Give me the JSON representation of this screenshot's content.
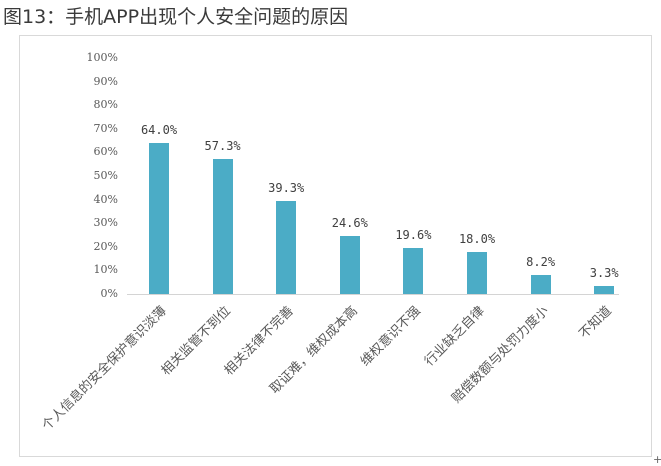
{
  "header": {
    "title": "图13：手机APP出现个人安全问题的原因"
  },
  "colors": {
    "bar": "#4bacc6",
    "axis": "#d4d4d4",
    "text": "#595959"
  },
  "chart_data": {
    "type": "bar",
    "title": "图13：手机APP出现个人安全问题的原因",
    "xlabel": "",
    "ylabel": "",
    "ylim": [
      0,
      100
    ],
    "yticks": [
      "0%",
      "10%",
      "20%",
      "30%",
      "40%",
      "50%",
      "60%",
      "70%",
      "80%",
      "90%",
      "100%"
    ],
    "grid": false,
    "legend": null,
    "categories": [
      "个人信息的安全保护意识淡薄",
      "相关监管不到位",
      "相关法律不完善",
      "取证难，维权成本高",
      "维权意识不强",
      "行业缺乏自律",
      "赔偿数额与处罚力度小",
      "不知道"
    ],
    "values": [
      64.0,
      57.3,
      39.3,
      24.6,
      19.6,
      18.0,
      8.2,
      3.3
    ],
    "data_labels": [
      "64.0%",
      "57.3%",
      "39.3%",
      "24.6%",
      "19.6%",
      "18.0%",
      "8.2%",
      "3.3%"
    ]
  },
  "ui": {
    "resize_handle": "+"
  }
}
